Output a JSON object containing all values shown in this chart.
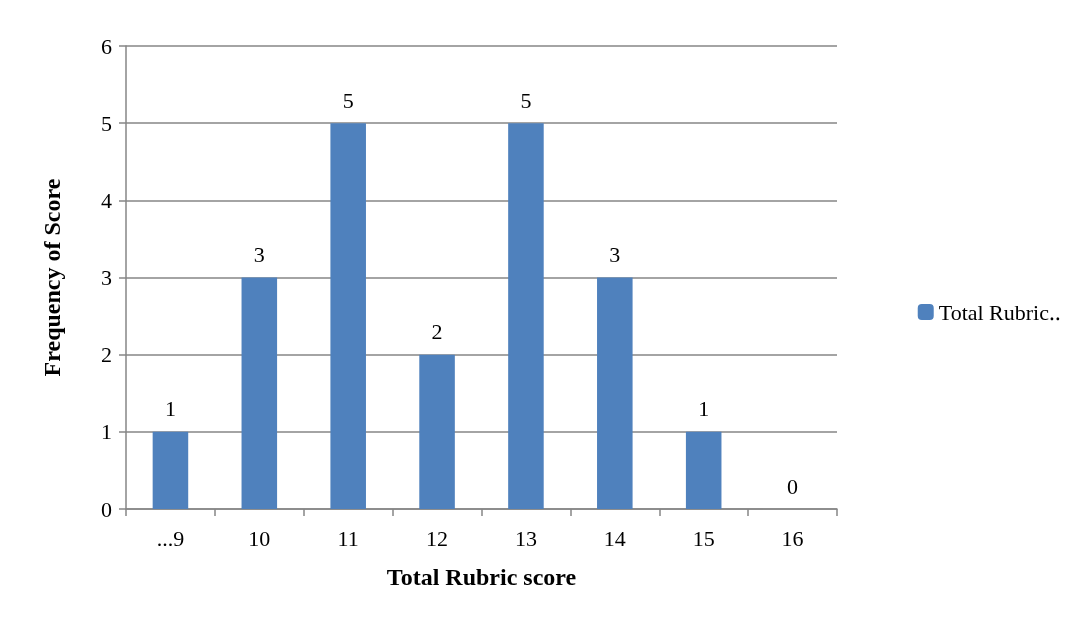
{
  "chart_data": {
    "type": "bar",
    "xlabel": "Total Rubric score",
    "ylabel": "Frequency of Score",
    "categories": [
      "...9",
      "10",
      "11",
      "12",
      "13",
      "14",
      "15",
      "16"
    ],
    "series": [
      {
        "name": "Total Rubric‥",
        "color": "#4f81bd",
        "values": [
          1,
          3,
          5,
          2,
          5,
          3,
          1,
          0
        ]
      }
    ],
    "ylim": [
      0,
      6
    ],
    "yticks": [
      0,
      1,
      2,
      3,
      4,
      5,
      6
    ],
    "grid": "y",
    "legend": "right",
    "data_labels": true
  }
}
